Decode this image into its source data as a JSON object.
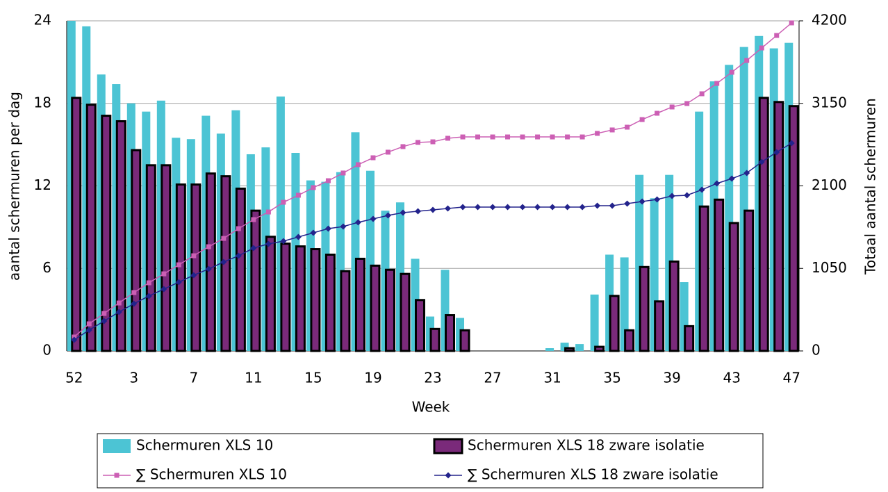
{
  "chart_data": {
    "type": "bar",
    "x_label": "Week",
    "y_label": "aantal schermuren per dag",
    "y2_label": "Totaal aantal schermuren",
    "categories": [
      "52",
      null,
      null,
      null,
      "3",
      null,
      null,
      null,
      "7",
      null,
      null,
      null,
      "11",
      null,
      null,
      null,
      "15",
      null,
      null,
      null,
      "19",
      null,
      null,
      null,
      "23",
      null,
      null,
      null,
      "27",
      null,
      null,
      null,
      "31",
      null,
      null,
      null,
      "35",
      null,
      null,
      null,
      "39",
      null,
      null,
      null,
      "43",
      null,
      null,
      null,
      "47"
    ],
    "ylim": [
      0,
      24
    ],
    "yticks": [
      0,
      6,
      12,
      18,
      24
    ],
    "y2lim": [
      0,
      4200
    ],
    "y2ticks": [
      0,
      1050,
      2100,
      3150,
      4200
    ],
    "grid": true,
    "series": [
      {
        "name": "Schermuren XLS 10",
        "type": "bar",
        "color": "#4cc4d4",
        "values": [
          24,
          23.6,
          20.1,
          19.4,
          18.0,
          17.4,
          18.2,
          15.5,
          15.4,
          17.1,
          15.8,
          17.5,
          14.3,
          14.8,
          18.5,
          14.4,
          12.4,
          12.3,
          13.0,
          15.9,
          13.1,
          10.2,
          10.8,
          6.7,
          2.5,
          5.9,
          2.4,
          0,
          0,
          0,
          0,
          0,
          0.2,
          0.6,
          0.5,
          4.1,
          7.0,
          6.8,
          12.8,
          11.1,
          12.8,
          5.0,
          17.4,
          19.6,
          20.8,
          22.1,
          22.9,
          22.0,
          22.4
        ]
      },
      {
        "name": "Schermuren XLS 18 zware isolatie",
        "type": "bar",
        "color": "#7a2a7a",
        "values": [
          18.4,
          17.9,
          17.1,
          16.7,
          14.6,
          13.5,
          13.5,
          12.1,
          12.1,
          12.9,
          12.7,
          11.8,
          10.2,
          8.3,
          7.8,
          7.6,
          7.4,
          7.0,
          5.8,
          6.7,
          6.2,
          5.9,
          5.6,
          3.7,
          1.6,
          2.6,
          1.5,
          0,
          0,
          0,
          0,
          0,
          0,
          0.2,
          0,
          0.3,
          4.0,
          1.5,
          6.1,
          3.6,
          6.5,
          1.8,
          10.5,
          11.0,
          9.3,
          10.2,
          18.4,
          18.1,
          17.8
        ]
      },
      {
        "name": "∑ Schermuren XLS 10",
        "type": "line",
        "axis": "y2",
        "color": "#cc5fb4",
        "values": [
          177,
          345,
          477,
          610,
          743,
          867,
          981,
          1096,
          1211,
          1326,
          1432,
          1556,
          1671,
          1768,
          1892,
          1981,
          2078,
          2166,
          2264,
          2370,
          2458,
          2529,
          2600,
          2653,
          2661,
          2706,
          2723,
          2723,
          2723,
          2723,
          2723,
          2723,
          2723,
          2723,
          2723,
          2768,
          2812,
          2847,
          2944,
          3024,
          3104,
          3148,
          3272,
          3404,
          3546,
          3696,
          3855,
          4014,
          4174
        ]
      },
      {
        "name": "∑ Schermuren XLS 18 zware isolatie",
        "type": "line",
        "axis": "y2",
        "color": "#23238c",
        "values": [
          141,
          265,
          380,
          495,
          601,
          699,
          787,
          875,
          964,
          1043,
          1132,
          1211,
          1309,
          1362,
          1397,
          1450,
          1503,
          1556,
          1583,
          1636,
          1680,
          1724,
          1760,
          1777,
          1795,
          1813,
          1830,
          1830,
          1830,
          1830,
          1830,
          1830,
          1830,
          1830,
          1830,
          1848,
          1848,
          1875,
          1901,
          1928,
          1972,
          1981,
          2051,
          2131,
          2193,
          2264,
          2405,
          2529,
          2644
        ]
      }
    ]
  }
}
